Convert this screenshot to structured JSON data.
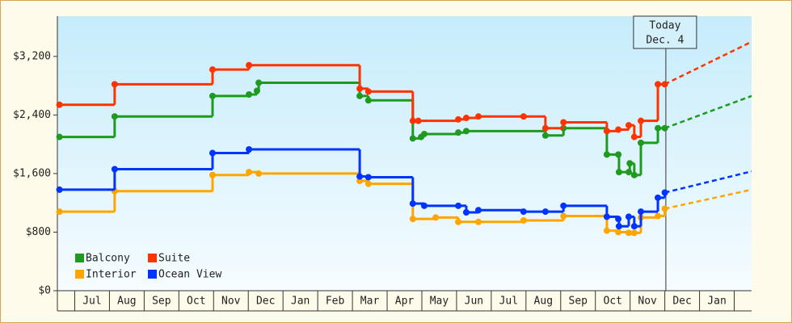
{
  "chart_data": {
    "type": "step",
    "xlim": [
      -0.5,
      19.5
    ],
    "xticks": [
      {
        "value": 0,
        "label": "Jul"
      },
      {
        "value": 1,
        "label": "Aug"
      },
      {
        "value": 2,
        "label": "Sep"
      },
      {
        "value": 3,
        "label": "Oct"
      },
      {
        "value": 4,
        "label": "Nov"
      },
      {
        "value": 5,
        "label": "Dec"
      },
      {
        "value": 6,
        "label": "Jan"
      },
      {
        "value": 7,
        "label": "Feb"
      },
      {
        "value": 8,
        "label": "Mar"
      },
      {
        "value": 9,
        "label": "Apr"
      },
      {
        "value": 10,
        "label": "May"
      },
      {
        "value": 11,
        "label": "Jun"
      },
      {
        "value": 12,
        "label": "Jul"
      },
      {
        "value": 13,
        "label": "Aug"
      },
      {
        "value": 14,
        "label": "Sep"
      },
      {
        "value": 15,
        "label": "Oct"
      },
      {
        "value": 16,
        "label": "Nov"
      },
      {
        "value": 17,
        "label": "Dec"
      },
      {
        "value": 18,
        "label": "Jan"
      }
    ],
    "ylim": [
      0,
      3750
    ],
    "yticks": [
      {
        "value": 0,
        "label": "$0"
      },
      {
        "value": 800,
        "label": "$800"
      },
      {
        "value": 1600,
        "label": "$1,600"
      },
      {
        "value": 2400,
        "label": "$2,400"
      },
      {
        "value": 3200,
        "label": "$3,200"
      }
    ],
    "today": {
      "x": 17.03,
      "label": [
        "Today",
        "Dec. 4"
      ]
    },
    "series": [
      {
        "name": "Balcony",
        "color": "#1e9a1e",
        "x": [
          -0.44,
          1.15,
          3.97,
          5.02,
          5.25,
          5.3,
          8.21,
          8.46,
          9.74,
          9.98,
          10.07,
          11.05,
          11.28,
          13.56,
          14.08,
          15.33,
          15.66,
          15.68,
          15.96,
          15.99,
          16.12,
          16.31,
          16.8,
          17.0
        ],
        "values": [
          2100,
          2380,
          2660,
          2680,
          2730,
          2840,
          2660,
          2600,
          2080,
          2100,
          2140,
          2160,
          2180,
          2120,
          2220,
          1860,
          1860,
          1620,
          1620,
          1740,
          1580,
          2020,
          2220,
          2220
        ],
        "forecast": {
          "x": 19.5,
          "value": 2660
        }
      },
      {
        "name": "Suite",
        "color": "#ff3300",
        "x": [
          -0.44,
          1.15,
          3.97,
          5.02,
          8.21,
          8.46,
          9.74,
          9.9,
          11.05,
          11.28,
          11.63,
          12.93,
          13.56,
          14.08,
          15.33,
          15.66,
          15.96,
          16.12,
          16.31,
          16.8,
          17.0
        ],
        "values": [
          2540,
          2820,
          3020,
          3080,
          2760,
          2720,
          2320,
          2320,
          2340,
          2360,
          2380,
          2380,
          2220,
          2300,
          2180,
          2200,
          2260,
          2100,
          2320,
          2820,
          2820
        ],
        "forecast": {
          "x": 19.5,
          "value": 3400
        }
      },
      {
        "name": "Interior",
        "color": "#ffa500",
        "x": [
          -0.44,
          1.15,
          3.97,
          5.02,
          5.3,
          8.21,
          8.46,
          9.74,
          10.4,
          11.05,
          11.63,
          12.93,
          14.08,
          15.33,
          15.66,
          15.96,
          16.12,
          16.31,
          16.8,
          17.0
        ],
        "values": [
          1080,
          1360,
          1580,
          1620,
          1600,
          1500,
          1460,
          980,
          1000,
          940,
          940,
          960,
          1020,
          820,
          800,
          790,
          790,
          1000,
          1020,
          1120
        ],
        "forecast": {
          "x": 19.5,
          "value": 1380
        }
      },
      {
        "name": "Ocean View",
        "color": "#0033ff",
        "x": [
          -0.44,
          1.15,
          3.97,
          5.02,
          8.21,
          8.46,
          9.74,
          10.07,
          11.05,
          11.28,
          11.63,
          12.93,
          13.56,
          14.08,
          15.33,
          15.66,
          15.68,
          15.96,
          16.12,
          16.31,
          16.8,
          17.0
        ],
        "values": [
          1380,
          1660,
          1880,
          1930,
          1560,
          1550,
          1190,
          1160,
          1160,
          1070,
          1100,
          1080,
          1080,
          1160,
          1010,
          980,
          880,
          1010,
          880,
          1080,
          1270,
          1340
        ],
        "forecast": {
          "x": 19.5,
          "value": 1630
        }
      }
    ]
  }
}
